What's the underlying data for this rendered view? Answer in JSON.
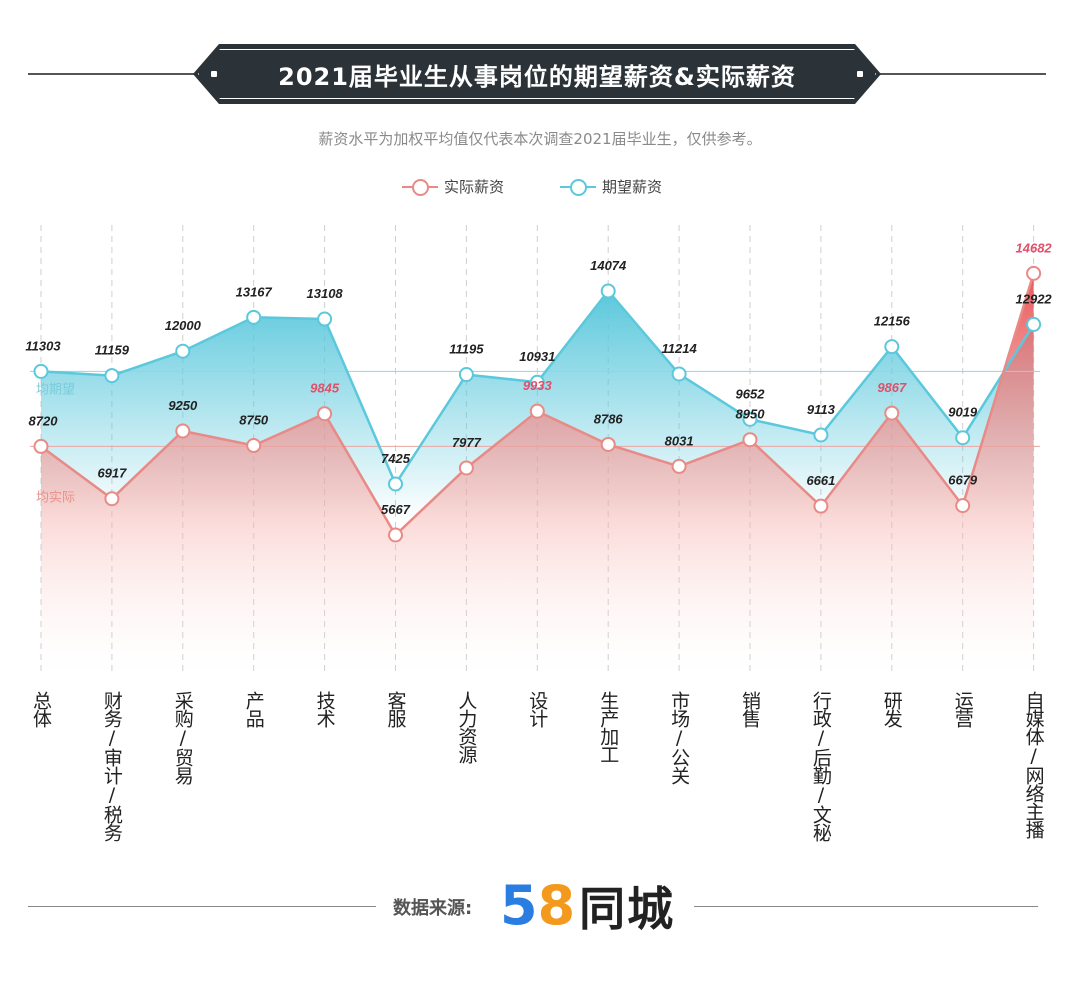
{
  "title": "2021届毕业生从事岗位的期望薪资&实际薪资",
  "subtitle": "薪资水平为加权平均值仅代表本次调查2021届毕业生，仅供参考。",
  "legend": {
    "actual": "实际薪资",
    "expected": "期望薪资"
  },
  "avg_labels": {
    "expected": "均期望",
    "actual": "均实际"
  },
  "footer": {
    "source_label": "数据来源:",
    "logo_digit_5": "5",
    "logo_digit_8": "8",
    "logo_word": "同城"
  },
  "colors": {
    "actual": "#e88a86",
    "expected": "#5bc8dc",
    "highlight": "#e0506a",
    "title_bg": "#2b3338"
  },
  "chart_data": {
    "type": "line",
    "title": "2021届毕业生从事岗位的期望薪资&实际薪资",
    "categories": [
      "总体",
      "财务/审计/税务",
      "采购/贸易",
      "产品",
      "技术",
      "客服",
      "人力资源",
      "设计",
      "生产加工",
      "市场/公关",
      "销售",
      "行政/后勤/文秘",
      "研发",
      "运营",
      "自媒体/网络主播"
    ],
    "series": [
      {
        "name": "实际薪资",
        "values": [
          8720,
          6917,
          9250,
          8750,
          9845,
          5667,
          7977,
          9933,
          8786,
          8031,
          8950,
          6661,
          9867,
          6679,
          14682
        ],
        "highlighted_labels": [
          4,
          7,
          12,
          14
        ]
      },
      {
        "name": "期望薪资",
        "values": [
          11303,
          11159,
          12000,
          13167,
          13108,
          7425,
          11195,
          10931,
          14074,
          11214,
          9652,
          9113,
          12156,
          9019,
          12922
        ]
      }
    ],
    "reference_lines": [
      {
        "label": "均期望",
        "value": 11303
      },
      {
        "label": "均实际",
        "value": 8720
      }
    ],
    "area_fill": true,
    "grid": "vertical dashed",
    "legend_position": "top-center"
  }
}
